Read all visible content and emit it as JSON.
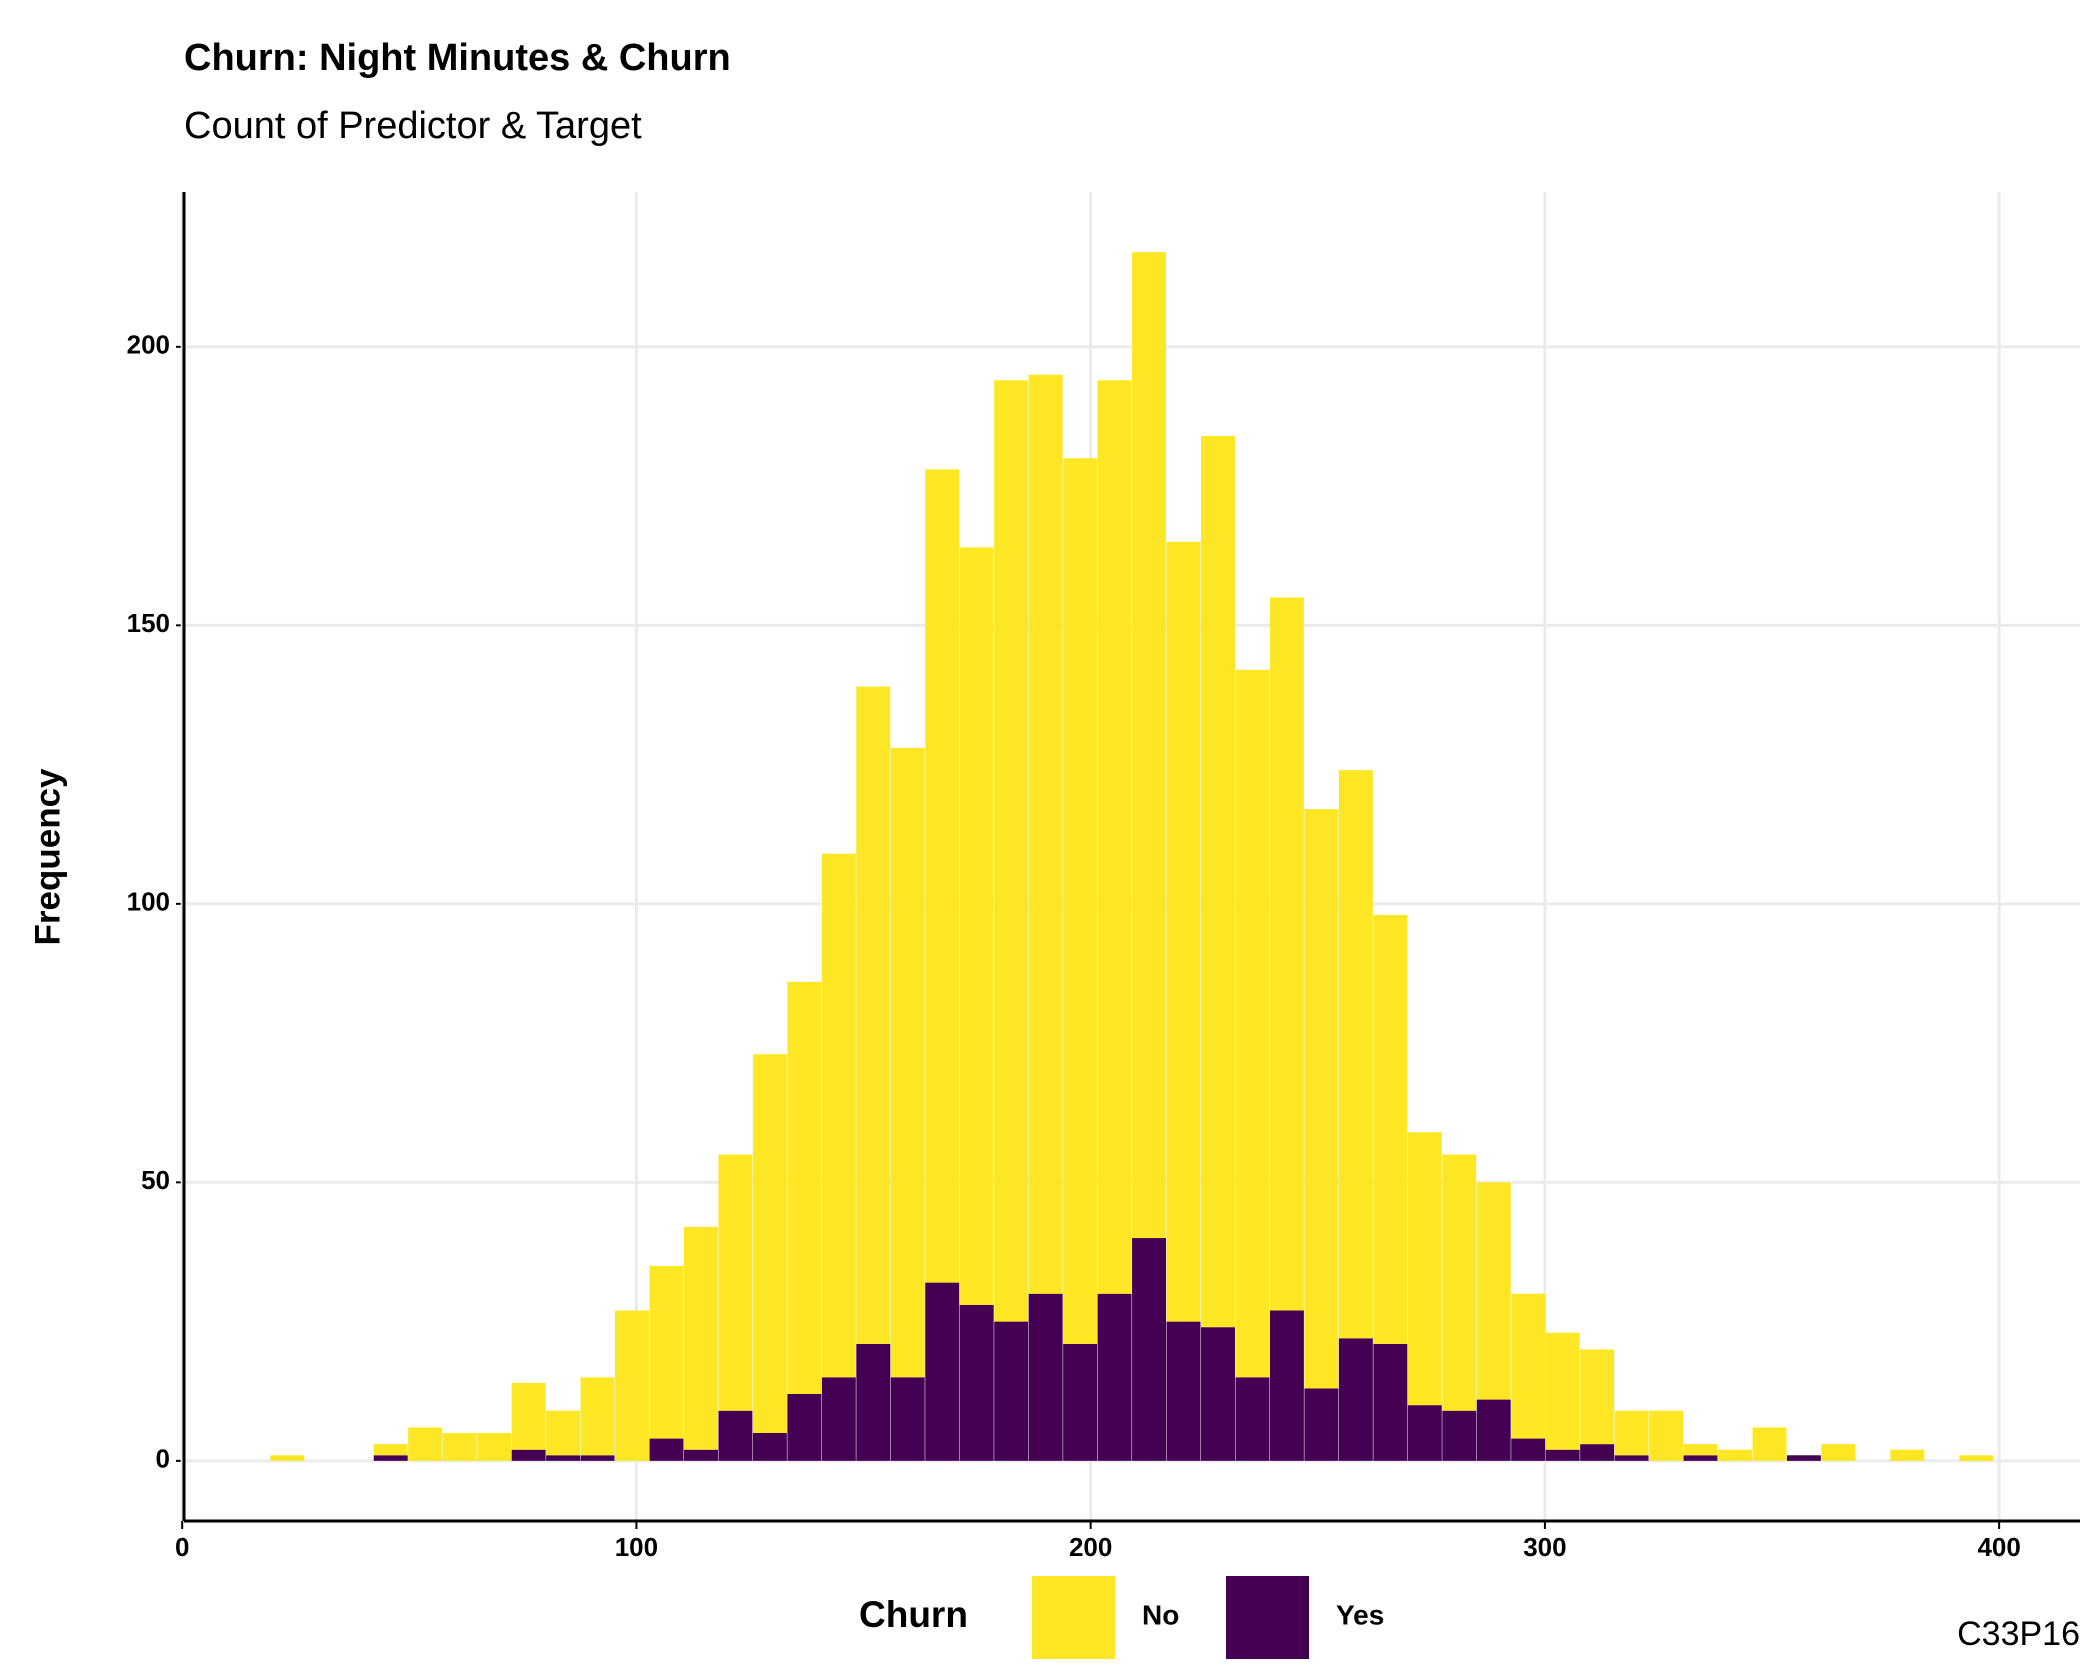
{
  "chart_data": {
    "type": "histogram",
    "stacked": true,
    "title": "Churn: Night Minutes & Churn",
    "subtitle": "Count of Predictor & Target",
    "y_label": "Frequency",
    "legend_title": "Churn",
    "caption": "C33P16",
    "legend_position": "bottom",
    "bins": [
      19.41,
      27.0,
      34.59,
      42.17,
      49.76,
      57.35,
      64.94,
      72.53,
      80.12,
      87.7,
      95.29,
      102.88,
      110.47,
      118.06,
      125.64,
      133.23,
      140.82,
      148.41,
      156.0,
      163.58,
      171.17,
      178.76,
      186.35,
      193.94,
      201.52,
      209.11,
      216.7,
      224.29,
      231.88,
      239.47,
      247.05,
      254.64,
      262.23,
      269.82,
      277.41,
      284.99,
      292.58,
      300.17,
      307.76,
      315.35,
      322.93,
      330.52,
      338.11,
      345.7,
      353.29,
      360.87,
      368.46,
      376.05,
      383.64,
      391.23,
      398.81
    ],
    "series": [
      {
        "name": "No",
        "color": "#fde725",
        "values": [
          1,
          0,
          0,
          2,
          6,
          5,
          5,
          12,
          8,
          14,
          27,
          31,
          40,
          46,
          68,
          74,
          94,
          118,
          113,
          146,
          136,
          169,
          165,
          159,
          164,
          177,
          140,
          160,
          127,
          128,
          104,
          102,
          77,
          49,
          46,
          39,
          26,
          21,
          17,
          8,
          9,
          2,
          2,
          6,
          0,
          3,
          0,
          2,
          0,
          1
        ]
      },
      {
        "name": "Yes",
        "color": "#440154",
        "values": [
          0,
          0,
          0,
          1,
          0,
          0,
          0,
          2,
          1,
          1,
          0,
          4,
          2,
          9,
          5,
          12,
          15,
          21,
          15,
          32,
          28,
          25,
          30,
          21,
          30,
          40,
          25,
          24,
          15,
          27,
          13,
          22,
          21,
          10,
          9,
          11,
          4,
          2,
          3,
          1,
          0,
          1,
          0,
          0,
          1,
          0,
          0,
          0,
          0,
          0
        ]
      }
    ],
    "xlim": [
      0.4,
      417.8
    ],
    "xticks": [
      0,
      100,
      200,
      300,
      400
    ],
    "ylim": [
      -10.8,
      227.8
    ],
    "yticks": [
      0,
      50,
      100,
      150,
      200
    ],
    "grid": true
  }
}
